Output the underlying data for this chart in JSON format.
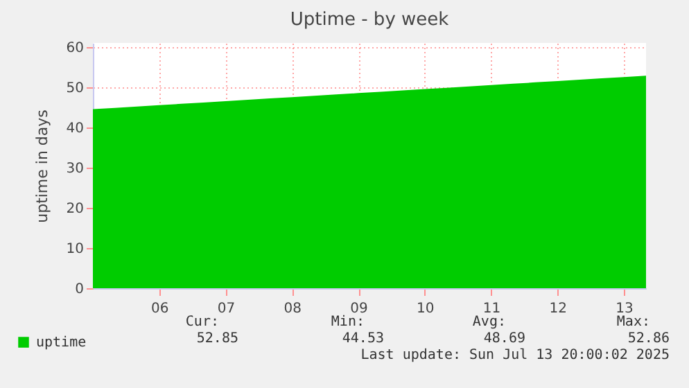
{
  "chart_data": {
    "type": "area",
    "title": "Uptime - by week",
    "ylabel": "uptime in days",
    "x": [
      "2025-07-05T12:00",
      "2025-07-05T20:00",
      "2025-07-06T04:00",
      "2025-07-06T12:00",
      "2025-07-06T20:00",
      "2025-07-07T04:00",
      "2025-07-07T12:00",
      "2025-07-07T20:00",
      "2025-07-08T04:00",
      "2025-07-08T12:00",
      "2025-07-08T20:00",
      "2025-07-09T04:00",
      "2025-07-09T12:00",
      "2025-07-09T20:00",
      "2025-07-10T04:00",
      "2025-07-10T12:00",
      "2025-07-10T20:00",
      "2025-07-11T04:00",
      "2025-07-11T12:00",
      "2025-07-11T20:00",
      "2025-07-12T04:00",
      "2025-07-12T12:00",
      "2025-07-12T20:00",
      "2025-07-13T04:00",
      "2025-07-13T12:00",
      "2025-07-13T20:00"
    ],
    "series": [
      {
        "name": "uptime",
        "color": "#00cc00",
        "values": [
          44.53,
          44.86,
          45.2,
          45.53,
          45.86,
          46.2,
          46.53,
          46.86,
          47.2,
          47.53,
          47.86,
          48.2,
          48.53,
          48.86,
          49.2,
          49.53,
          49.86,
          50.2,
          50.53,
          50.86,
          51.2,
          51.53,
          51.86,
          52.2,
          52.53,
          52.86
        ]
      }
    ],
    "xlim": [
      "2025-07-05T12:00",
      "2025-07-13T20:00"
    ],
    "xticks": [
      {
        "value": "2025-07-06T12:00",
        "label": "06"
      },
      {
        "value": "2025-07-07T12:00",
        "label": "07"
      },
      {
        "value": "2025-07-08T12:00",
        "label": "08"
      },
      {
        "value": "2025-07-09T12:00",
        "label": "09"
      },
      {
        "value": "2025-07-10T12:00",
        "label": "10"
      },
      {
        "value": "2025-07-11T12:00",
        "label": "11"
      },
      {
        "value": "2025-07-12T12:00",
        "label": "12"
      },
      {
        "value": "2025-07-13T12:00",
        "label": "13"
      }
    ],
    "ylim": [
      0,
      61
    ],
    "yticks": [
      0,
      10,
      20,
      30,
      40,
      50,
      60
    ],
    "grid": true,
    "legend": "bottom left",
    "annotations": [
      "Cur:",
      "52.85",
      "Min:",
      "44.53",
      "Avg:",
      "48.69",
      "Max:",
      "52.86",
      "Last update: Sun Jul 13 20:00:02 2025"
    ]
  }
}
